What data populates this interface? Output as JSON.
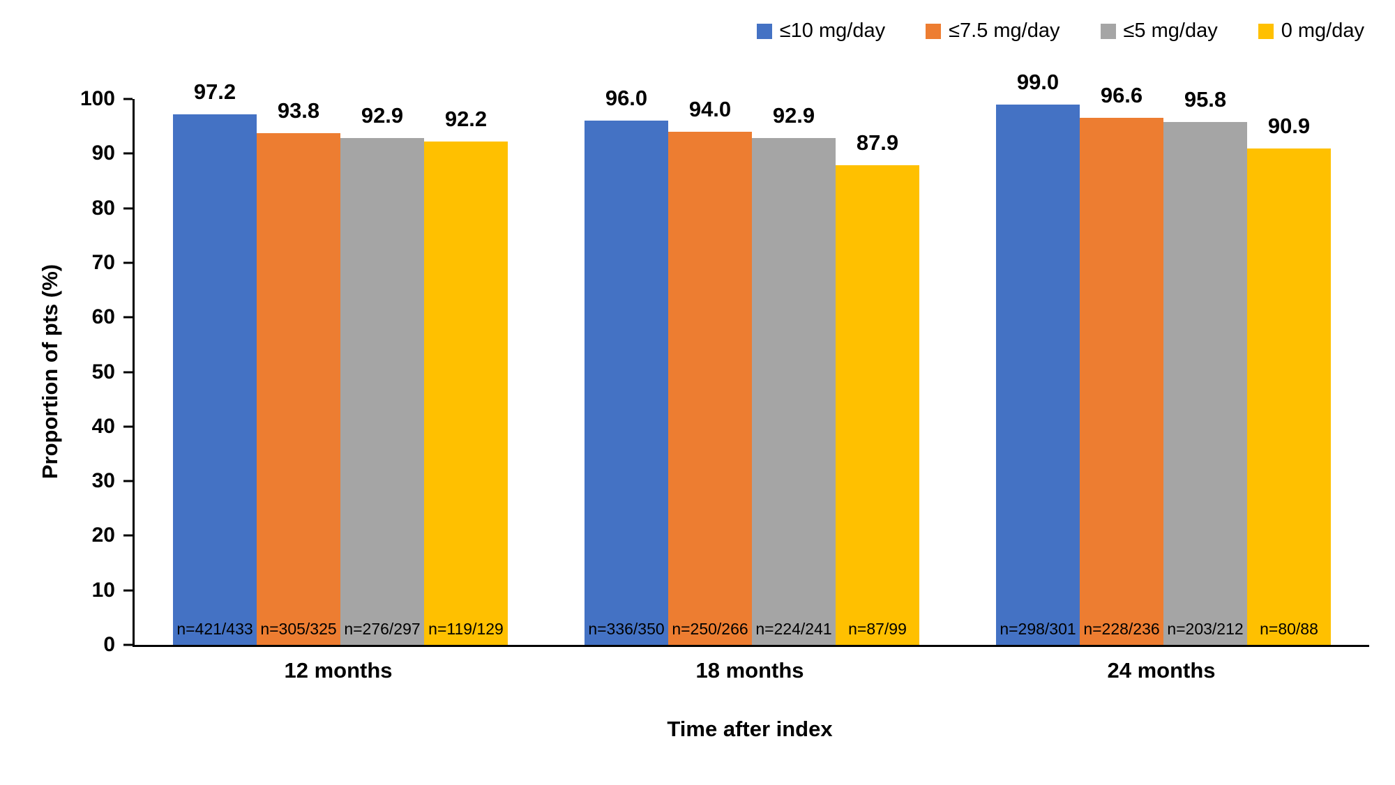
{
  "chart_data": {
    "type": "bar",
    "title": "",
    "categories": [
      "12 months",
      "18 months",
      "24 months"
    ],
    "series": [
      {
        "name": "≤10 mg/day",
        "color": "#4472C4",
        "values": [
          97.2,
          96.0,
          99.0
        ],
        "value_labels": [
          "97.2",
          "96.0",
          "99.0"
        ],
        "n_labels": [
          "n=421/433",
          "n=336/350",
          "n=298/301"
        ]
      },
      {
        "name": "≤7.5 mg/day",
        "color": "#ED7D31",
        "values": [
          93.8,
          94.0,
          96.6
        ],
        "value_labels": [
          "93.8",
          "94.0",
          "96.6"
        ],
        "n_labels": [
          "n=305/325",
          "n=250/266",
          "n=228/236"
        ]
      },
      {
        "name": "≤5 mg/day",
        "color": "#A5A5A5",
        "values": [
          92.9,
          92.9,
          95.8
        ],
        "value_labels": [
          "92.9",
          "92.9",
          "95.8"
        ],
        "n_labels": [
          "n=276/297",
          "n=224/241",
          "n=203/212"
        ]
      },
      {
        "name": "0 mg/day",
        "color": "#FFC000",
        "values": [
          92.2,
          87.9,
          90.9
        ],
        "value_labels": [
          "92.2",
          "87.9",
          "90.9"
        ],
        "n_labels": [
          "n=119/129",
          "n=87/99",
          "n=80/88"
        ]
      }
    ],
    "xlabel": "Time after index",
    "ylabel": "Proportion of pts (%)",
    "ylim": [
      0,
      100
    ],
    "yticks": [
      "0",
      "10",
      "20",
      "30",
      "40",
      "50",
      "60",
      "70",
      "80",
      "90",
      "100"
    ],
    "legend_position": "top-right",
    "grid": false,
    "background": "#FFFFFF",
    "text_color": "#000000",
    "axis_color": "#000000"
  }
}
